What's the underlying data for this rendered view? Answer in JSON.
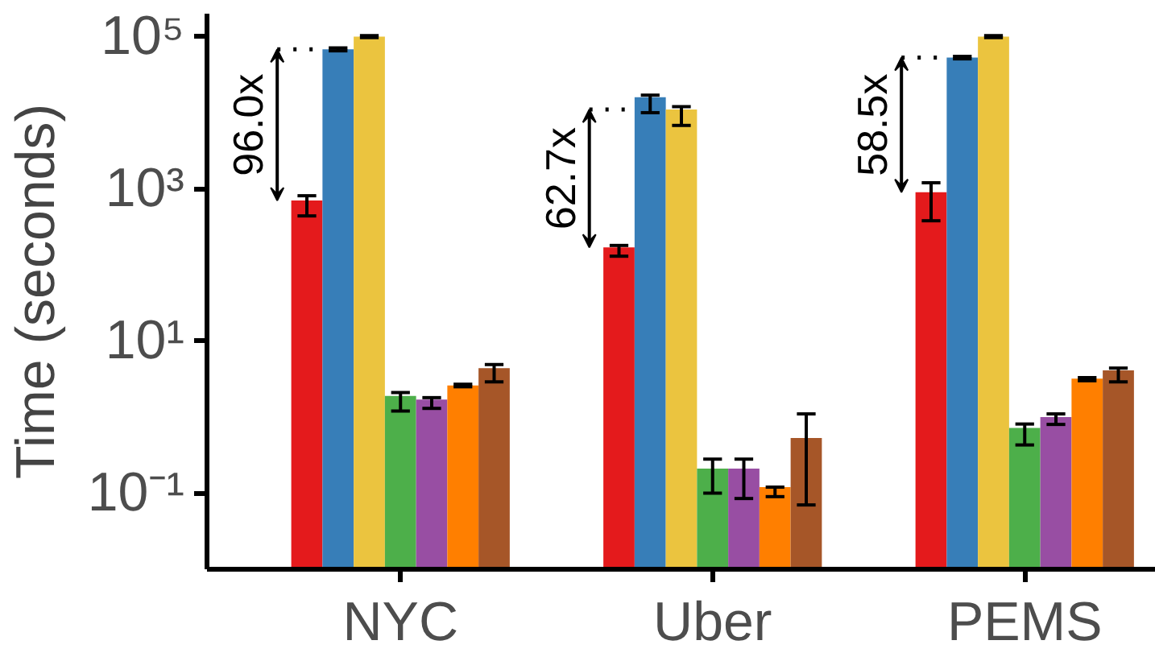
{
  "chart_data": {
    "type": "bar",
    "ylabel": "Time (seconds)",
    "categories": [
      "NYC",
      "Uber",
      "PEMS"
    ],
    "log": true,
    "grid": false,
    "ylim": [
      0.01,
      200000
    ],
    "yticks": [
      {
        "value": 0.1,
        "label": "10⁻¹"
      },
      {
        "value": 10,
        "label": "10¹"
      },
      {
        "value": 1000,
        "label": "10³"
      },
      {
        "value": 100000,
        "label": "10⁵"
      }
    ],
    "series": [
      {
        "color": "#e41a1c",
        "values": [
          700,
          170,
          900
        ],
        "errors": [
          [
            440,
            810
          ],
          [
            130,
            180
          ],
          [
            380,
            1200
          ]
        ]
      },
      {
        "color": "#377eb8",
        "values": [
          68000,
          16000,
          53000
        ],
        "errors": [
          [
            65000,
            71000
          ],
          [
            10000,
            17000
          ],
          [
            51000,
            55000
          ]
        ]
      },
      {
        "color": "#ebc43f",
        "values": [
          100000,
          11000,
          100000
        ],
        "errors": [
          [
            97000,
            103000
          ],
          [
            6800,
            12000
          ],
          [
            97000,
            103000
          ]
        ]
      },
      {
        "color": "#4daf4a",
        "values": [
          1.9,
          0.21,
          0.72
        ],
        "errors": [
          [
            1.2,
            2.1
          ],
          [
            0.1,
            0.28
          ],
          [
            0.43,
            0.81
          ]
        ]
      },
      {
        "color": "#984ea3",
        "values": [
          1.7,
          0.21,
          1.0
        ],
        "errors": [
          [
            1.3,
            1.8
          ],
          [
            0.085,
            0.28
          ],
          [
            0.8,
            1.1
          ]
        ]
      },
      {
        "color": "#ff7f00",
        "values": [
          2.6,
          0.12,
          3.2
        ],
        "errors": [
          [
            2.5,
            2.7
          ],
          [
            0.09,
            0.12
          ],
          [
            3.0,
            3.3
          ]
        ]
      },
      {
        "color": "#a65628",
        "values": [
          4.4,
          0.53,
          4.1
        ],
        "errors": [
          [
            2.9,
            4.9
          ],
          [
            0.07,
            1.1
          ],
          [
            2.9,
            4.4
          ]
        ]
      }
    ],
    "annotations": [
      "96.0x",
      "62.7x",
      "58.5x"
    ]
  }
}
